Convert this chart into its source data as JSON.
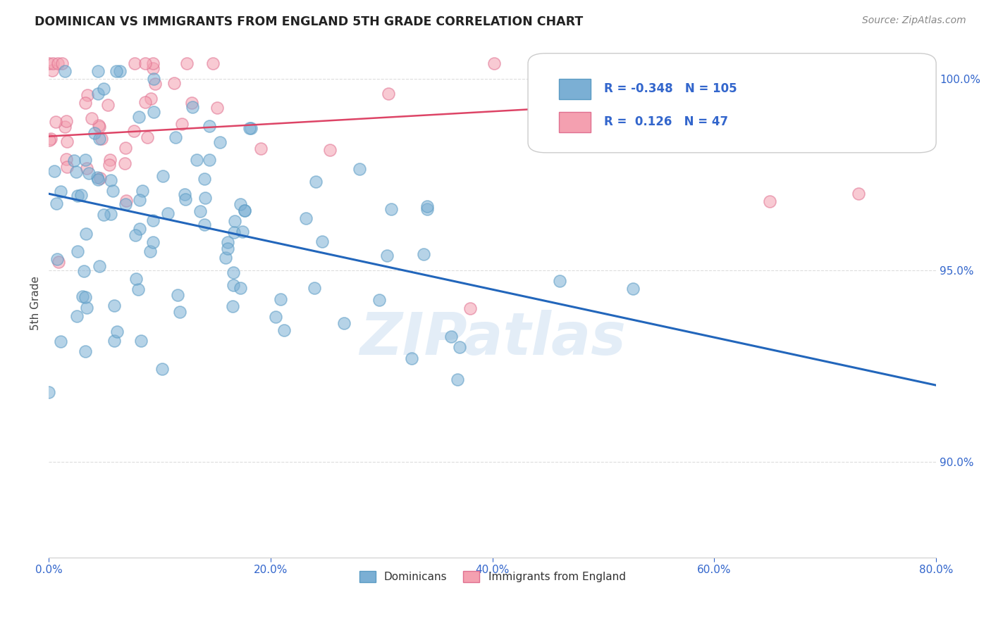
{
  "title": "DOMINICAN VS IMMIGRANTS FROM ENGLAND 5TH GRADE CORRELATION CHART",
  "source": "Source: ZipAtlas.com",
  "ylabel": "5th Grade",
  "xlim": [
    0.0,
    0.8
  ],
  "ylim": [
    0.875,
    1.008
  ],
  "ytick_vals": [
    0.8,
    0.85,
    0.9,
    0.95,
    1.0
  ],
  "xtick_vals": [
    0.0,
    0.2,
    0.4,
    0.6,
    0.8
  ],
  "blue_R": -0.348,
  "blue_N": 105,
  "pink_R": 0.126,
  "pink_N": 47,
  "blue_color": "#7BAFD4",
  "blue_edge_color": "#5A9BC4",
  "pink_color": "#F4A0B0",
  "pink_edge_color": "#E07090",
  "blue_line_color": "#2266BB",
  "pink_line_color": "#DD4466",
  "watermark": "ZIPatlas",
  "legend_blue_label": "Dominicans",
  "legend_pink_label": "Immigrants from England",
  "blue_line_y0": 0.97,
  "blue_line_y1": 0.92,
  "pink_line_y0": 0.985,
  "pink_line_y1": 0.998,
  "tick_color": "#3366CC",
  "grid_color": "#DDDDDD",
  "title_color": "#222222",
  "source_color": "#888888"
}
